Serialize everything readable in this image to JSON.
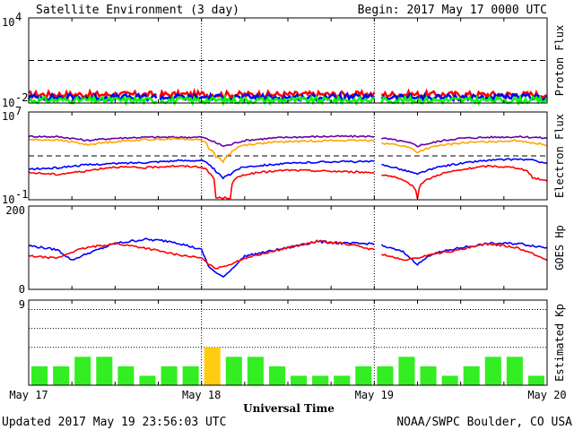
{
  "header": {
    "title": "Satellite Environment (3 day)",
    "begin": "Begin:  2017 May 17 0000 UTC"
  },
  "footer": {
    "updated": "Updated 2017 May 19 23:56:03 UTC",
    "credit": "NOAA/SWPC Boulder, CO USA"
  },
  "colors": {
    "red": "#ff0000",
    "blue": "#0000ff",
    "green": "#00ff00",
    "purple": "#6600aa",
    "orange": "#ffa500",
    "kp_bar": "#33ee22",
    "kp_active": "#ffcc11"
  },
  "chart_data": [
    {
      "type": "line",
      "ylabel": "Proton Flux",
      "scale": "log",
      "ylim": [
        0.01,
        10000
      ],
      "yticks": [
        {
          "base": "10",
          "exp": "-2"
        },
        {
          "base": "10",
          "exp": "4"
        }
      ],
      "threshold": 10,
      "xlim": [
        0,
        72
      ],
      "data_gap_hours": [
        [
          17.9,
          18.2
        ],
        [
          48.0,
          49.0
        ]
      ],
      "series": [
        {
          "color": "red",
          "x": [
            0,
            12,
            24,
            36,
            48,
            60,
            72
          ],
          "y": [
            0.04,
            0.04,
            0.04,
            0.04,
            0.04,
            0.04,
            0.04
          ]
        },
        {
          "color": "blue",
          "x": [
            0,
            12,
            24,
            36,
            48,
            60,
            72
          ],
          "y": [
            0.025,
            0.025,
            0.025,
            0.025,
            0.025,
            0.025,
            0.025
          ]
        },
        {
          "color": "green",
          "x": [
            0,
            12,
            24,
            36,
            48,
            60,
            72
          ],
          "y": [
            0.016,
            0.016,
            0.016,
            0.016,
            0.016,
            0.016,
            0.016
          ]
        }
      ]
    },
    {
      "type": "line",
      "ylabel": "Electron Flux",
      "scale": "log",
      "ylim": [
        0.1,
        10000000
      ],
      "yticks": [
        {
          "base": "10",
          "exp": "-1"
        },
        {
          "base": "10",
          "exp": "7"
        }
      ],
      "threshold": 1000,
      "xlim": [
        0,
        72
      ],
      "data_gap_hours": [
        [
          48.0,
          49.0
        ]
      ],
      "series": [
        {
          "color": "purple",
          "x": [
            0,
            4,
            8,
            12,
            16,
            20,
            24,
            25,
            26,
            27,
            28,
            30,
            36,
            42,
            47.9,
            49,
            52,
            54,
            56,
            60,
            64,
            68,
            70,
            72
          ],
          "y": [
            60000,
            55000,
            25000,
            40000,
            50000,
            50000,
            50000,
            30000,
            15000,
            8000,
            10000,
            25000,
            50000,
            60000,
            60000,
            40000,
            20000,
            8000,
            15000,
            40000,
            50000,
            55000,
            50000,
            40000
          ]
        },
        {
          "color": "orange",
          "x": [
            0,
            4,
            8,
            12,
            16,
            20,
            24,
            25,
            26,
            27,
            28,
            30,
            36,
            42,
            47.9,
            49,
            52,
            54,
            56,
            60,
            64,
            68,
            70,
            72
          ],
          "y": [
            30000,
            28000,
            10000,
            20000,
            30000,
            35000,
            30000,
            5000,
            800,
            300,
            1500,
            10000,
            20000,
            25000,
            25000,
            15000,
            8000,
            2000,
            6000,
            15000,
            20000,
            25000,
            15000,
            10000
          ]
        },
        {
          "color": "blue",
          "x": [
            0,
            4,
            8,
            12,
            16,
            20,
            24,
            25,
            26,
            27,
            28,
            30,
            36,
            42,
            47.9,
            49,
            52,
            54,
            56,
            60,
            64,
            68,
            70,
            72
          ],
          "y": [
            60,
            80,
            150,
            200,
            250,
            350,
            400,
            150,
            30,
            10,
            20,
            100,
            200,
            300,
            300,
            150,
            50,
            20,
            60,
            200,
            400,
            500,
            400,
            200
          ]
        },
        {
          "color": "red",
          "x": [
            0,
            4,
            8,
            12,
            16,
            20,
            24,
            25,
            26,
            27,
            28,
            30,
            36,
            42,
            47.9,
            49,
            52,
            54,
            56,
            60,
            64,
            68,
            70,
            72
          ],
          "y": [
            30,
            20,
            40,
            100,
            80,
            120,
            100,
            30,
            0.15,
            0.15,
            0.15,
            20,
            50,
            40,
            30,
            20,
            5,
            0.15,
            10,
            50,
            120,
            80,
            10,
            5
          ]
        }
      ]
    },
    {
      "type": "line",
      "ylabel": "GOES Hp",
      "scale": "linear",
      "ylim": [
        0,
        200
      ],
      "yticks": [
        {
          "label": "0"
        },
        {
          "label": "200"
        }
      ],
      "xlim": [
        0,
        72
      ],
      "data_gap_hours": [
        [
          48.0,
          49.0
        ]
      ],
      "series": [
        {
          "color": "blue",
          "x": [
            0,
            4,
            6,
            8,
            12,
            16,
            20,
            24,
            25,
            26,
            27,
            28,
            30,
            36,
            40,
            44,
            47.9,
            49,
            52,
            54,
            56,
            60,
            64,
            68,
            70,
            72
          ],
          "y": [
            105,
            95,
            70,
            85,
            110,
            120,
            115,
            95,
            55,
            40,
            30,
            45,
            80,
            100,
            115,
            110,
            110,
            105,
            90,
            60,
            85,
            100,
            110,
            110,
            105,
            100
          ]
        },
        {
          "color": "red",
          "x": [
            0,
            4,
            6,
            8,
            12,
            16,
            20,
            24,
            25,
            26,
            27,
            28,
            30,
            36,
            40,
            44,
            47.9,
            49,
            52,
            54,
            56,
            60,
            64,
            68,
            70,
            72
          ],
          "y": [
            80,
            75,
            90,
            100,
            110,
            100,
            85,
            75,
            60,
            50,
            55,
            60,
            75,
            100,
            115,
            110,
            95,
            85,
            70,
            75,
            85,
            95,
            110,
            100,
            85,
            70
          ]
        }
      ]
    },
    {
      "type": "bar",
      "ylabel": "Estimated Kp",
      "ylim": [
        0,
        9
      ],
      "yticks": [
        {
          "label": "9"
        }
      ],
      "interval_hours": 3,
      "values": [
        2,
        2,
        3,
        3,
        2,
        1,
        2,
        2,
        4,
        3,
        3,
        2,
        1,
        1,
        1,
        2,
        2,
        3,
        2,
        1,
        2,
        3,
        3,
        1
      ],
      "active_threshold": 4,
      "reference_lines": [
        4,
        6,
        8
      ]
    }
  ],
  "x_axis": {
    "title": "Universal Time",
    "ticks": [
      "May 17",
      "May 18",
      "May 19",
      "May 20"
    ]
  }
}
